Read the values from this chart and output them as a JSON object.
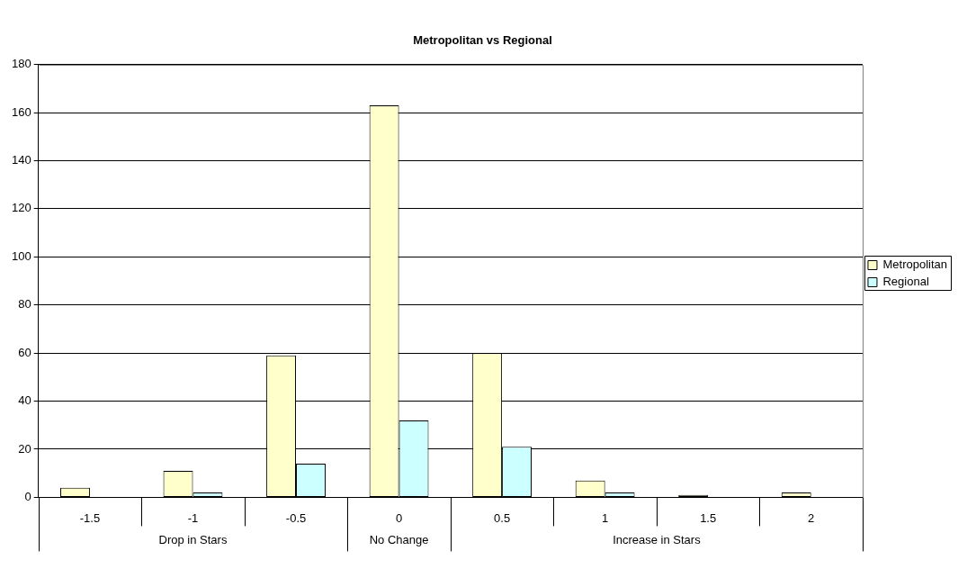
{
  "chart_data": {
    "type": "bar",
    "title": "Metropolitan vs Regional",
    "categories": [
      "-1.5",
      "-1",
      "-0.5",
      "0",
      "0.5",
      "1",
      "1.5",
      "2"
    ],
    "series": [
      {
        "name": "Metropolitan",
        "color": "#ffffcc",
        "values": [
          4,
          11,
          59,
          163,
          60,
          7,
          1,
          2
        ]
      },
      {
        "name": "Regional",
        "color": "#ccffff",
        "values": [
          0,
          2,
          14,
          32,
          21,
          2,
          0,
          0
        ]
      }
    ],
    "ylim": [
      0,
      180
    ],
    "yticks": [
      0,
      20,
      40,
      60,
      80,
      100,
      120,
      140,
      160,
      180
    ],
    "grid": "y",
    "legend": "right",
    "annotations": [
      "Drop in Stars",
      "No Change",
      "Increase in Stars"
    ]
  }
}
